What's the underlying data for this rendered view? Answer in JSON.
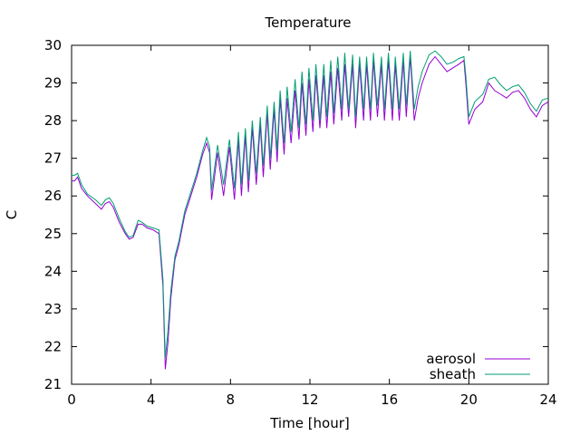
{
  "chart_data": {
    "type": "line",
    "title": "Temperature",
    "xlabel": "Time [hour]",
    "ylabel": "C",
    "xlim": [
      0,
      24
    ],
    "ylim": [
      21,
      30
    ],
    "xticks": [
      0,
      4,
      8,
      12,
      16,
      20,
      24
    ],
    "yticks": [
      21,
      22,
      23,
      24,
      25,
      26,
      27,
      28,
      29,
      30
    ],
    "grid": false,
    "legend_position": "bottom-right",
    "series": [
      {
        "name": "aerosol",
        "color": "#9400d3",
        "x": [
          0,
          0.15,
          0.3,
          0.5,
          0.8,
          1.2,
          1.5,
          1.7,
          1.9,
          2.1,
          2.4,
          2.7,
          2.9,
          3.1,
          3.35,
          3.55,
          3.8,
          4.1,
          4.4,
          4.6,
          4.72,
          4.85,
          5.0,
          5.2,
          5.4,
          5.7,
          6.0,
          6.3,
          6.6,
          6.8,
          6.95,
          7.05,
          7.35,
          7.65,
          7.95,
          8.2,
          8.4,
          8.55,
          8.75,
          8.9,
          9.1,
          9.3,
          9.5,
          9.65,
          9.85,
          10.0,
          10.2,
          10.35,
          10.5,
          10.7,
          10.85,
          11.05,
          11.25,
          11.45,
          11.6,
          11.8,
          11.95,
          12.15,
          12.3,
          12.5,
          12.7,
          12.85,
          13.05,
          13.2,
          13.4,
          13.6,
          13.75,
          13.95,
          14.15,
          14.3,
          14.5,
          14.7,
          14.85,
          15.05,
          15.2,
          15.4,
          15.6,
          15.75,
          15.95,
          16.15,
          16.3,
          16.5,
          16.7,
          16.85,
          17.05,
          17.25,
          17.45,
          17.65,
          18.0,
          18.3,
          18.6,
          18.9,
          19.2,
          19.5,
          19.75,
          19.85,
          20.0,
          20.3,
          20.7,
          21.0,
          21.3,
          21.6,
          21.9,
          22.2,
          22.5,
          22.8,
          23.1,
          23.4,
          23.7,
          24.0
        ],
        "y": [
          26.4,
          26.4,
          26.5,
          26.2,
          26.0,
          25.8,
          25.65,
          25.8,
          25.85,
          25.7,
          25.3,
          25.0,
          24.85,
          24.9,
          25.25,
          25.25,
          25.15,
          25.1,
          25.0,
          23.6,
          21.4,
          22.1,
          23.3,
          24.3,
          24.7,
          25.5,
          26.0,
          26.5,
          27.1,
          27.4,
          27.15,
          25.9,
          27.15,
          26.0,
          27.3,
          25.9,
          27.5,
          26.0,
          27.6,
          26.1,
          27.8,
          26.3,
          27.9,
          26.5,
          28.2,
          26.7,
          28.3,
          26.9,
          28.6,
          27.1,
          28.6,
          27.4,
          28.8,
          27.5,
          29.0,
          27.6,
          29.1,
          27.7,
          29.2,
          27.8,
          29.2,
          27.8,
          29.3,
          27.9,
          29.4,
          28.0,
          29.5,
          28.1,
          29.5,
          27.8,
          29.5,
          28.0,
          29.5,
          28.0,
          29.6,
          28.1,
          29.5,
          28.0,
          29.6,
          28.0,
          29.5,
          28.0,
          29.6,
          28.1,
          29.7,
          28.0,
          28.6,
          29.0,
          29.5,
          29.7,
          29.5,
          29.3,
          29.4,
          29.5,
          29.6,
          29.0,
          27.9,
          28.3,
          28.5,
          29.0,
          28.8,
          28.7,
          28.6,
          28.75,
          28.8,
          28.6,
          28.3,
          28.1,
          28.4,
          28.5
        ]
      },
      {
        "name": "sheath",
        "color": "#009e73",
        "x": [
          0,
          0.15,
          0.3,
          0.5,
          0.8,
          1.2,
          1.5,
          1.7,
          1.9,
          2.1,
          2.4,
          2.7,
          2.9,
          3.1,
          3.35,
          3.55,
          3.8,
          4.1,
          4.4,
          4.6,
          4.72,
          4.85,
          5.0,
          5.2,
          5.4,
          5.7,
          6.0,
          6.3,
          6.6,
          6.8,
          6.95,
          7.05,
          7.35,
          7.65,
          7.95,
          8.2,
          8.4,
          8.55,
          8.75,
          8.9,
          9.1,
          9.3,
          9.5,
          9.65,
          9.85,
          10.0,
          10.2,
          10.35,
          10.5,
          10.7,
          10.85,
          11.05,
          11.25,
          11.45,
          11.6,
          11.8,
          11.95,
          12.15,
          12.3,
          12.5,
          12.7,
          12.85,
          13.05,
          13.2,
          13.4,
          13.6,
          13.75,
          13.95,
          14.15,
          14.3,
          14.5,
          14.7,
          14.85,
          15.05,
          15.2,
          15.4,
          15.6,
          15.75,
          15.95,
          16.15,
          16.3,
          16.5,
          16.7,
          16.85,
          17.05,
          17.25,
          17.45,
          17.65,
          18.0,
          18.3,
          18.6,
          18.9,
          19.2,
          19.5,
          19.75,
          19.85,
          20.0,
          20.3,
          20.7,
          21.0,
          21.3,
          21.6,
          21.9,
          22.2,
          22.5,
          22.8,
          23.1,
          23.4,
          23.7,
          24.0
        ],
        "y": [
          26.55,
          26.55,
          26.6,
          26.3,
          26.05,
          25.9,
          25.75,
          25.9,
          25.95,
          25.8,
          25.4,
          25.05,
          24.9,
          24.95,
          25.35,
          25.3,
          25.2,
          25.15,
          25.1,
          23.8,
          21.7,
          22.4,
          23.5,
          24.4,
          24.8,
          25.6,
          26.1,
          26.6,
          27.2,
          27.55,
          27.3,
          26.15,
          27.35,
          26.3,
          27.5,
          26.2,
          27.7,
          26.3,
          27.8,
          26.4,
          28.0,
          26.6,
          28.1,
          26.8,
          28.4,
          27.0,
          28.5,
          27.2,
          28.8,
          27.4,
          28.9,
          27.7,
          29.1,
          27.8,
          29.3,
          27.9,
          29.4,
          28.0,
          29.5,
          28.0,
          29.5,
          28.1,
          29.6,
          28.2,
          29.7,
          28.3,
          29.8,
          28.3,
          29.75,
          28.1,
          29.7,
          28.3,
          29.7,
          28.3,
          29.8,
          28.4,
          29.7,
          28.3,
          29.8,
          28.3,
          29.7,
          28.3,
          29.8,
          28.4,
          29.85,
          28.3,
          28.9,
          29.3,
          29.75,
          29.85,
          29.7,
          29.5,
          29.55,
          29.65,
          29.7,
          29.2,
          28.1,
          28.5,
          28.7,
          29.1,
          29.15,
          28.95,
          28.8,
          28.9,
          28.95,
          28.75,
          28.45,
          28.25,
          28.55,
          28.6
        ]
      }
    ]
  }
}
